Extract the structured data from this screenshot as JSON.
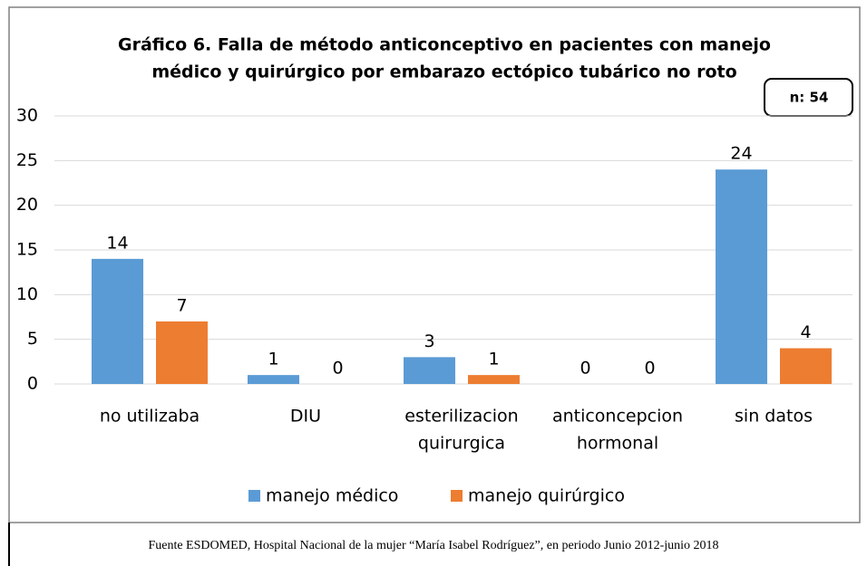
{
  "chart_data": {
    "type": "bar",
    "title": [
      "Gráfico 6. Falla de método anticonceptivo en pacientes con manejo",
      "médico y quirúrgico por embarazo ectópico tubárico no roto"
    ],
    "annotation": "n: 54",
    "categories": [
      [
        "no utilizaba"
      ],
      [
        "DIU"
      ],
      [
        "esterilizacion",
        "quirurgica"
      ],
      [
        "anticoncepcion",
        "hormonal"
      ],
      [
        "sin datos"
      ]
    ],
    "series": [
      {
        "name": "manejo médico",
        "color": "#5b9bd5",
        "values": [
          14,
          1,
          3,
          0,
          24
        ]
      },
      {
        "name": "manejo quirúrgico",
        "color": "#ed7d31",
        "values": [
          7,
          0,
          1,
          0,
          4
        ]
      }
    ],
    "ylim": [
      0,
      30
    ],
    "yticks": [
      0,
      5,
      10,
      15,
      20,
      25,
      30
    ],
    "grid": true,
    "legend": "bottom"
  },
  "footer": "Fuente ESDOMED, Hospital Nacional de la mujer “María Isabel Rodríguez”, en periodo Junio 2012-junio 2018"
}
